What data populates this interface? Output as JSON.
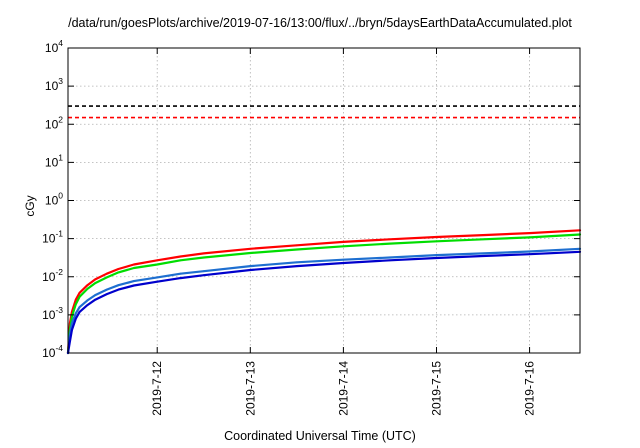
{
  "chart_data": {
    "type": "line",
    "title": "/data/run/goesPlots/archive/2019-07-16/13:00/flux/../bryn/5daysEarthDataAccumulated.plot",
    "xlabel": "Coordinated Universal Time (UTC)",
    "ylabel": "cGy",
    "y_scale": "log",
    "ylim": [
      0.0001,
      10000
    ],
    "xlim": [
      "2019-07-11 01:00",
      "2019-07-16 13:00"
    ],
    "grid": true,
    "y_ticks": [
      {
        "base": "10",
        "exp": "-4",
        "value": 0.0001
      },
      {
        "base": "10",
        "exp": "-3",
        "value": 0.001
      },
      {
        "base": "10",
        "exp": "-2",
        "value": 0.01
      },
      {
        "base": "10",
        "exp": "-1",
        "value": 0.1
      },
      {
        "base": "10",
        "exp": "0",
        "value": 1
      },
      {
        "base": "10",
        "exp": "1",
        "value": 10
      },
      {
        "base": "10",
        "exp": "2",
        "value": 100
      },
      {
        "base": "10",
        "exp": "3",
        "value": 1000
      },
      {
        "base": "10",
        "exp": "4",
        "value": 10000
      }
    ],
    "x_ticks": [
      {
        "label": "2019-7-12",
        "x": "2019-07-12 00:00"
      },
      {
        "label": "2019-7-13",
        "x": "2019-07-13 00:00"
      },
      {
        "label": "2019-7-14",
        "x": "2019-07-14 00:00"
      },
      {
        "label": "2019-7-15",
        "x": "2019-07-15 00:00"
      },
      {
        "label": "2019-7-16",
        "x": "2019-07-16 00:00"
      }
    ],
    "reference_lines": [
      {
        "color": "#000000",
        "y": 300,
        "style": "dashed"
      },
      {
        "color": "#ff0000",
        "y": 150,
        "style": "dashed"
      }
    ],
    "series": [
      {
        "color": "#ff0000",
        "x": [
          "2019-07-11 01:00",
          "2019-07-11 01:30",
          "2019-07-11 02:00",
          "2019-07-11 03:00",
          "2019-07-11 04:00",
          "2019-07-11 06:00",
          "2019-07-11 08:00",
          "2019-07-11 11:00",
          "2019-07-11 14:00",
          "2019-07-11 18:00",
          "2019-07-12 00:00",
          "2019-07-12 06:00",
          "2019-07-12 12:00",
          "2019-07-13 00:00",
          "2019-07-13 12:00",
          "2019-07-14 00:00",
          "2019-07-14 12:00",
          "2019-07-15 00:00",
          "2019-07-15 12:00",
          "2019-07-16 00:00",
          "2019-07-16 13:00"
        ],
        "y": [
          0.0001,
          0.0006,
          0.0012,
          0.0025,
          0.0038,
          0.006,
          0.0085,
          0.012,
          0.016,
          0.021,
          0.027,
          0.034,
          0.041,
          0.054,
          0.067,
          0.082,
          0.096,
          0.11,
          0.124,
          0.14,
          0.165
        ]
      },
      {
        "color": "#00dd00",
        "x": [
          "2019-07-11 01:00",
          "2019-07-11 01:30",
          "2019-07-11 02:00",
          "2019-07-11 03:00",
          "2019-07-11 04:00",
          "2019-07-11 06:00",
          "2019-07-11 08:00",
          "2019-07-11 11:00",
          "2019-07-11 14:00",
          "2019-07-11 18:00",
          "2019-07-12 00:00",
          "2019-07-12 06:00",
          "2019-07-12 12:00",
          "2019-07-13 00:00",
          "2019-07-13 12:00",
          "2019-07-14 00:00",
          "2019-07-14 12:00",
          "2019-07-15 00:00",
          "2019-07-15 12:00",
          "2019-07-16 00:00",
          "2019-07-16 13:00"
        ],
        "y": [
          0.0001,
          0.0004,
          0.0009,
          0.0019,
          0.003,
          0.0048,
          0.0068,
          0.0096,
          0.013,
          0.017,
          0.021,
          0.027,
          0.032,
          0.042,
          0.052,
          0.063,
          0.074,
          0.085,
          0.096,
          0.108,
          0.128
        ]
      },
      {
        "color": "#1e6fd0",
        "x": [
          "2019-07-11 01:00",
          "2019-07-11 01:30",
          "2019-07-11 02:00",
          "2019-07-11 03:00",
          "2019-07-11 04:00",
          "2019-07-11 06:00",
          "2019-07-11 08:00",
          "2019-07-11 11:00",
          "2019-07-11 14:00",
          "2019-07-11 18:00",
          "2019-07-12 00:00",
          "2019-07-12 06:00",
          "2019-07-12 12:00",
          "2019-07-13 00:00",
          "2019-07-13 12:00",
          "2019-07-14 00:00",
          "2019-07-14 12:00",
          "2019-07-15 00:00",
          "2019-07-15 12:00",
          "2019-07-16 00:00",
          "2019-07-16 13:00"
        ],
        "y": [
          0.0001,
          0.0003,
          0.0006,
          0.0011,
          0.0016,
          0.0024,
          0.0033,
          0.0046,
          0.006,
          0.0077,
          0.0096,
          0.012,
          0.014,
          0.019,
          0.024,
          0.028,
          0.032,
          0.037,
          0.041,
          0.046,
          0.054
        ]
      },
      {
        "color": "#0000cc",
        "x": [
          "2019-07-11 01:00",
          "2019-07-11 01:30",
          "2019-07-11 02:00",
          "2019-07-11 03:00",
          "2019-07-11 04:00",
          "2019-07-11 06:00",
          "2019-07-11 08:00",
          "2019-07-11 11:00",
          "2019-07-11 14:00",
          "2019-07-11 18:00",
          "2019-07-12 00:00",
          "2019-07-12 06:00",
          "2019-07-12 12:00",
          "2019-07-13 00:00",
          "2019-07-13 12:00",
          "2019-07-14 00:00",
          "2019-07-14 12:00",
          "2019-07-15 00:00",
          "2019-07-15 12:00",
          "2019-07-16 00:00",
          "2019-07-16 13:00"
        ],
        "y": [
          0.0001,
          0.0002,
          0.0004,
          0.0008,
          0.0012,
          0.0018,
          0.0025,
          0.0035,
          0.0046,
          0.0059,
          0.0074,
          0.0092,
          0.011,
          0.015,
          0.019,
          0.023,
          0.027,
          0.031,
          0.035,
          0.039,
          0.045
        ]
      }
    ]
  }
}
